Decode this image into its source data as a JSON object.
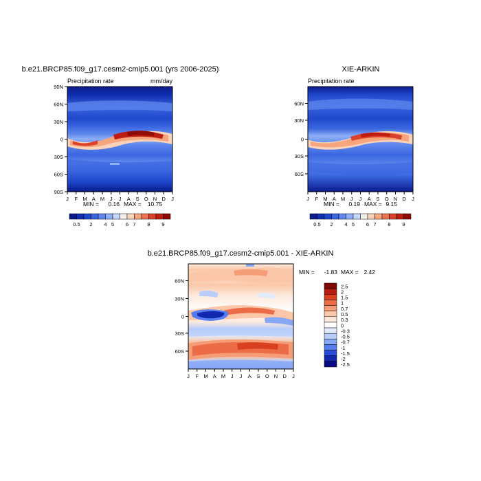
{
  "chart_data": [
    {
      "type": "heatmap",
      "id": "model",
      "title": "b.e21.BRCP85.f09_g17.cesm2-cmip5.001 (yrs 2006-2025)",
      "subtitle_left": "Precipitation rate",
      "units": "mm/day",
      "x_tick_labels": [
        "J",
        "F",
        "M",
        "A",
        "M",
        "J",
        "J",
        "A",
        "S",
        "O",
        "N",
        "D",
        "J"
      ],
      "y_tick_labels": [
        "90N",
        "60N",
        "30N",
        "0",
        "30S",
        "60S",
        "90S"
      ],
      "stats": {
        "min_label": "MIN =",
        "min": "0.16",
        "max_label": "MAX =",
        "max": "10.75"
      },
      "ylim": [
        -90,
        90
      ],
      "colorbar_labels": [
        "0.5",
        "2",
        "4",
        "5",
        "6",
        "7",
        "8",
        "9"
      ],
      "peak_max": 10.75
    },
    {
      "type": "heatmap",
      "id": "obs",
      "title": "XIE-ARKIN",
      "subtitle_left": "Precipitation rate",
      "x_tick_labels": [
        "J",
        "F",
        "M",
        "A",
        "M",
        "J",
        "J",
        "A",
        "S",
        "O",
        "N",
        "D",
        "J"
      ],
      "y_tick_labels": [
        "60N",
        "30N",
        "0",
        "30S",
        "60S"
      ],
      "stats": {
        "min_label": "MIN =",
        "min": "0.19",
        "max_label": "MAX =",
        "max": "9.15"
      },
      "colorbar_labels": [
        "0.5",
        "2",
        "4",
        "5",
        "6",
        "7",
        "8",
        "9"
      ],
      "peak_max": 9.15
    },
    {
      "type": "heatmap",
      "id": "diff",
      "title": "b.e21.BRCP85.f09_g17.cesm2-cmip5.001 - XIE-ARKIN",
      "x_tick_labels": [
        "J",
        "F",
        "M",
        "A",
        "M",
        "J",
        "J",
        "A",
        "S",
        "O",
        "N",
        "D",
        "J"
      ],
      "y_tick_labels": [
        "60N",
        "30N",
        "0",
        "30S",
        "60S"
      ],
      "stats": {
        "min_label": "MIN =",
        "min": "-1.83",
        "max_label": "MAX =",
        "max": "2.42"
      },
      "colorbar_labels": [
        "2.5",
        "2",
        "1.5",
        "1",
        "0.7",
        "0.5",
        "0.3",
        "0",
        "-0.3",
        "-0.5",
        "-0.7",
        "-1",
        "-1.5",
        "-2",
        "-2.5"
      ]
    }
  ],
  "colors": {
    "precip_scale": [
      "#0a1a8c",
      "#0f2fb0",
      "#1f48cc",
      "#3a66e0",
      "#5f87ee",
      "#8eaef5",
      "#c3d6fb",
      "#f3f0ec",
      "#fbd3b8",
      "#f6a57d",
      "#ec7350",
      "#db4229",
      "#c01d12",
      "#8e0b06"
    ],
    "diff_scale": [
      "#0a0a82",
      "#1228b0",
      "#2a4ed8",
      "#557ff0",
      "#86a8f7",
      "#b8cdfb",
      "#e2ebfd",
      "#ffffff",
      "#fde9dc",
      "#fbc7a8",
      "#f59d76",
      "#ec6c47",
      "#d9401f",
      "#b81c0e",
      "#7f0a04"
    ]
  }
}
